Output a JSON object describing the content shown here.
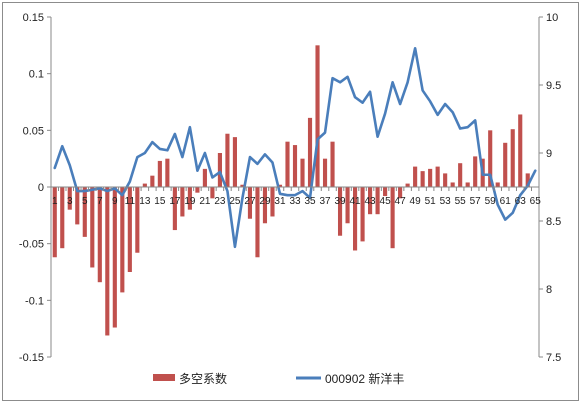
{
  "chart_data": {
    "type": "bar+line",
    "categories": [
      "1",
      "2",
      "3",
      "4",
      "5",
      "6",
      "7",
      "8",
      "9",
      "10",
      "11",
      "12",
      "13",
      "14",
      "15",
      "16",
      "17",
      "18",
      "19",
      "20",
      "21",
      "22",
      "23",
      "24",
      "25",
      "26",
      "27",
      "28",
      "29",
      "30",
      "31",
      "32",
      "33",
      "34",
      "35",
      "36",
      "37",
      "38",
      "39",
      "40",
      "41",
      "42",
      "43",
      "44",
      "45",
      "46",
      "47",
      "48",
      "49",
      "50",
      "51",
      "52",
      "53",
      "54",
      "55",
      "56",
      "57",
      "58",
      "59",
      "60",
      "61",
      "62",
      "63",
      "64",
      "65"
    ],
    "x_tick_labels": [
      "1",
      "3",
      "5",
      "7",
      "9",
      "11",
      "13",
      "15",
      "17",
      "19",
      "21",
      "23",
      "25",
      "27",
      "29",
      "31",
      "33",
      "35",
      "37",
      "39",
      "41",
      "43",
      "45",
      "47",
      "49",
      "51",
      "53",
      "55",
      "57",
      "59",
      "61",
      "63",
      "65"
    ],
    "left_axis": {
      "min": -0.15,
      "max": 0.15,
      "ticks": [
        -0.15,
        -0.1,
        -0.05,
        0,
        0.05,
        0.1,
        0.15
      ],
      "tick_labels": [
        "-0.15",
        "-0.1",
        "-0.05",
        "0",
        "0.05",
        "0.1",
        "0.15"
      ]
    },
    "right_axis": {
      "min": 7.5,
      "max": 10,
      "ticks": [
        7.5,
        8,
        8.5,
        9,
        9.5,
        10
      ],
      "tick_labels": [
        "7.5",
        "8",
        "8.5",
        "9",
        "9.5",
        "10"
      ]
    },
    "series": [
      {
        "name": "多空系数",
        "type": "bar",
        "axis": "left",
        "color": "#C0504D",
        "values": [
          -0.062,
          -0.054,
          -0.02,
          -0.033,
          -0.044,
          -0.071,
          -0.084,
          -0.131,
          -0.124,
          -0.093,
          -0.075,
          -0.058,
          0.003,
          0.01,
          0.023,
          0.025,
          -0.038,
          -0.026,
          -0.02,
          -0.005,
          0.016,
          -0.01,
          0.03,
          0.047,
          0.044,
          0.002,
          -0.028,
          -0.062,
          -0.032,
          -0.026,
          0.002,
          0.04,
          0.037,
          0.025,
          0.061,
          0.125,
          0.025,
          0.04,
          -0.043,
          -0.032,
          -0.056,
          -0.048,
          -0.024,
          -0.024,
          -0.008,
          -0.054,
          -0.01,
          0.003,
          0.018,
          0.014,
          0.016,
          0.018,
          0.012,
          0.004,
          0.021,
          0.004,
          0.027,
          0.025,
          0.05,
          0.004,
          0.039,
          0.051,
          0.064,
          0.012,
          0.0
        ]
      },
      {
        "name": "000902 新洋丰",
        "type": "line",
        "axis": "right",
        "color": "#4A7EBB",
        "values": [
          8.89,
          9.05,
          8.91,
          8.72,
          8.72,
          8.73,
          8.74,
          8.72,
          8.74,
          8.69,
          8.79,
          8.97,
          9.0,
          9.08,
          9.03,
          9.02,
          9.14,
          8.97,
          9.19,
          8.87,
          9.0,
          8.82,
          8.86,
          8.72,
          8.31,
          8.67,
          8.97,
          8.92,
          8.99,
          8.93,
          8.7,
          8.69,
          8.69,
          8.72,
          8.67,
          9.1,
          9.15,
          9.55,
          9.52,
          9.56,
          9.41,
          9.37,
          9.45,
          9.12,
          9.29,
          9.52,
          9.36,
          9.52,
          9.77,
          9.46,
          9.38,
          9.28,
          9.36,
          9.3,
          9.18,
          9.19,
          9.24,
          8.84,
          8.84,
          8.62,
          8.51,
          8.56,
          8.69,
          8.76,
          8.87
        ]
      }
    ],
    "legend": {
      "position": "bottom",
      "items": [
        "多空系数",
        "000902 新洋丰"
      ]
    }
  }
}
